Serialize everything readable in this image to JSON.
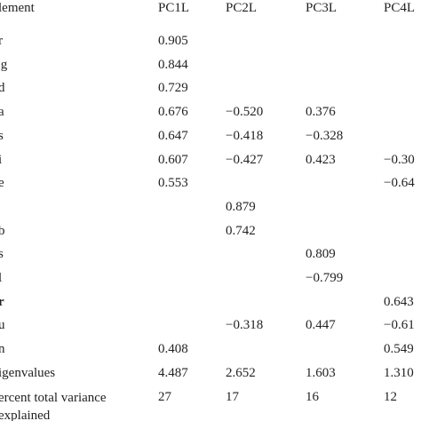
{
  "table": {
    "header": [
      "lement",
      "PC1L",
      "PC2L",
      "PC3L",
      "PC4L"
    ],
    "rows": [
      {
        "label": "r",
        "values": [
          "0.905",
          null,
          null,
          null
        ]
      },
      {
        "label": "'g",
        "values": [
          "0.844",
          null,
          null,
          null
        ]
      },
      {
        "label": "d",
        "values": [
          "0.729",
          null,
          null,
          null
        ]
      },
      {
        "label": "a",
        "values": [
          "0.676",
          "−0.520",
          "0.376",
          null
        ]
      },
      {
        "label": "s",
        "values": [
          "0.647",
          "−0.418",
          "−0.328",
          null
        ]
      },
      {
        "label": "i",
        "values": [
          "0.607",
          "−0.427",
          "0.423",
          "−0.30"
        ]
      },
      {
        "label": "e",
        "values": [
          "0.553",
          null,
          null,
          "−0.64"
        ]
      },
      {
        "label": null,
        "values": [
          null,
          "0.879",
          null,
          null
        ]
      },
      {
        "label": "b",
        "values": [
          null,
          "0.742",
          null,
          null
        ]
      },
      {
        "label": "s",
        "values": [
          null,
          null,
          "0.809",
          null
        ]
      },
      {
        "label": "l",
        "values": [
          null,
          null,
          "−0.799",
          null
        ]
      },
      {
        "label": "r",
        "bold": true,
        "values": [
          null,
          null,
          null,
          "0.643"
        ]
      },
      {
        "label": "u",
        "values": [
          null,
          "−0.318",
          "0.447",
          "−0.61"
        ]
      },
      {
        "label": "n",
        "values": [
          "0.408",
          null,
          null,
          "0.549"
        ]
      },
      {
        "label": "igenvalues",
        "values": [
          "4.487",
          "2.652",
          "1.603",
          "1.310"
        ]
      },
      {
        "label": "ercent total variance explained",
        "values": [
          "27",
          "17",
          "16",
          "12"
        ]
      }
    ]
  }
}
